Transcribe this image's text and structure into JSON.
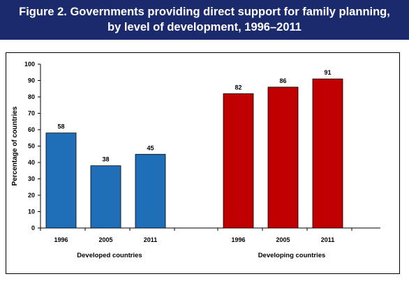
{
  "figure": {
    "title_line1": "Figure 2. Governments providing direct support for family planning,",
    "title_line2": "by level of development, 1996–2011"
  },
  "colors": {
    "title_background": "#1a2a6c",
    "developed": "#1f6fb8",
    "developing": "#c00000"
  },
  "chart_data": {
    "type": "bar",
    "title": "Figure 2. Governments providing direct support for family planning, by level of development, 1996–2011",
    "xlabel": "",
    "ylabel": "Percentage of countries",
    "ylim": [
      0,
      100
    ],
    "yticks": [
      0,
      10,
      20,
      30,
      40,
      50,
      60,
      70,
      80,
      90,
      100
    ],
    "grid": false,
    "groups": [
      {
        "name": "Developed countries",
        "categories": [
          "1996",
          "2005",
          "2011"
        ],
        "values": [
          58,
          38,
          45
        ]
      },
      {
        "name": "Developing countries",
        "categories": [
          "1996",
          "2005",
          "2011"
        ],
        "values": [
          82,
          86,
          91
        ]
      }
    ]
  }
}
